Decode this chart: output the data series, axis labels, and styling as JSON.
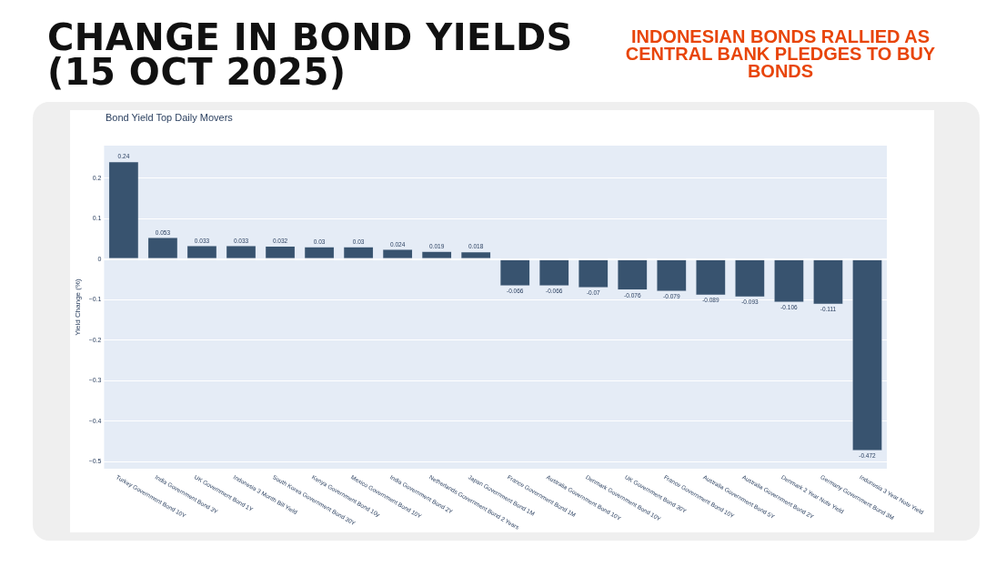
{
  "chart_data": {
    "type": "bar",
    "title": "CHANGE IN BOND YIELDS (15 OCT 2025)",
    "subtitle": "INDONESIAN BONDS RALLIED AS CENTRAL BANK PLEDGES TO BUY BONDS",
    "annotations": [
      "Bond Yield Top Daily Movers"
    ],
    "ylabel": "Yield Change (%)",
    "categories": [
      "Turkey Government Bond 10Y",
      "India Government Bond 3Y",
      "UK Government Bond 1Y",
      "Indonesia 3 Month Bill Yield",
      "South Korea Government Bond 30Y",
      "Kenya Government Bond 10y",
      "Mexico Government Bond 10Y",
      "India Government Bond 2Y",
      "Netherlands Government Bond 2 Years",
      "Japan Government Bond 1M",
      "France Government Bond 1M",
      "Australia Government Bond 10Y",
      "Denmark Government Bond 10Y",
      "UK Government Bond 30Y",
      "France Government Bond 10Y",
      "Australia Government Bond 5Y",
      "Australia Government Bond 2Y",
      "Denmark 2 Year Note Yield",
      "Germany Government Bond 3M",
      "Indonesia 3 Year Note Yield"
    ],
    "values": [
      0.24,
      0.053,
      0.033,
      0.033,
      0.032,
      0.03,
      0.03,
      0.024,
      0.019,
      0.018,
      -0.066,
      -0.066,
      -0.07,
      -0.076,
      -0.079,
      -0.089,
      -0.093,
      -0.106,
      -0.111,
      -0.472
    ],
    "color": "#38536f",
    "data_labels": true,
    "grid": "y",
    "legend": false,
    "ylim": [
      -0.517,
      0.28
    ],
    "yticks": [
      {
        "value": -0.5,
        "label": "−0.5"
      },
      {
        "value": -0.4,
        "label": "−0.4"
      },
      {
        "value": -0.3,
        "label": "−0.3"
      },
      {
        "value": -0.2,
        "label": "−0.2"
      },
      {
        "value": -0.1,
        "label": "−0.1"
      },
      0,
      0.1,
      0.2
    ]
  }
}
